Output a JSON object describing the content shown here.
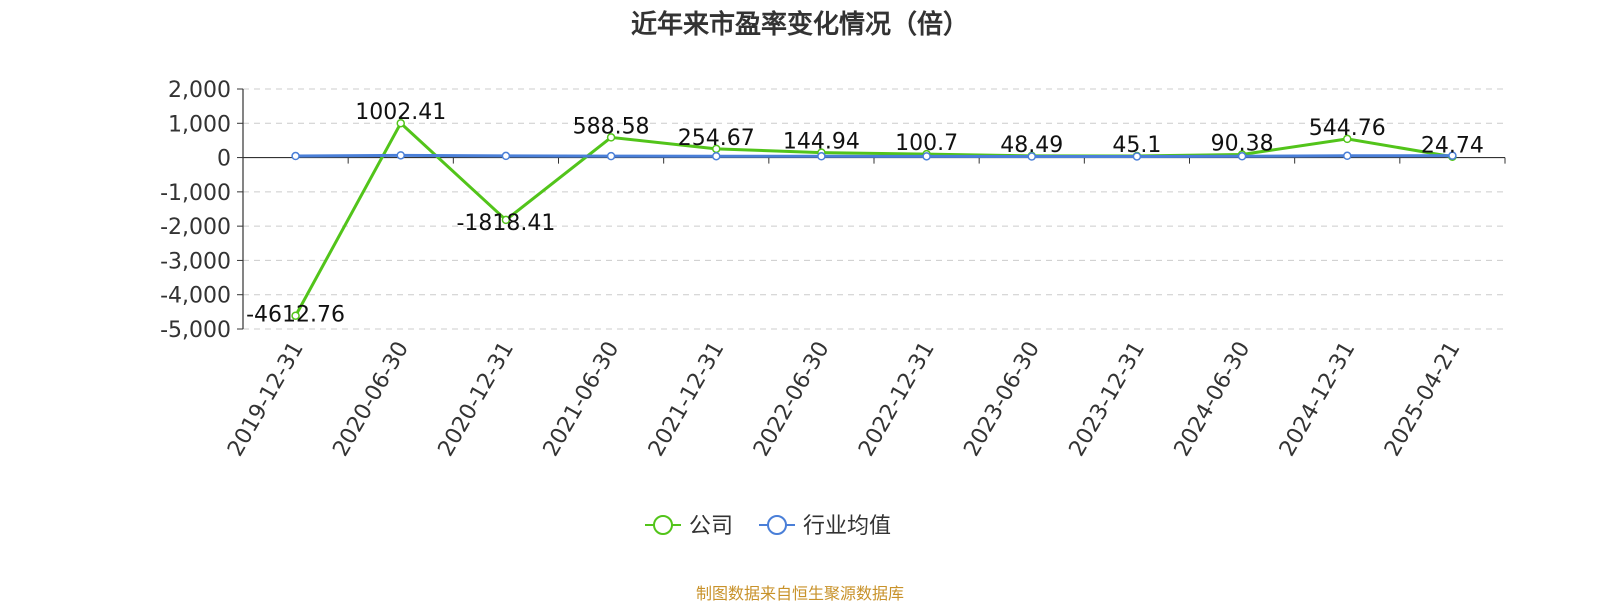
{
  "title": "近年来市盈率变化情况（倍）",
  "source_note": "制图数据来自恒生聚源数据库",
  "chart_data": {
    "type": "line",
    "title": "近年来市盈率变化情况（倍）",
    "categories": [
      "2019-12-31",
      "2020-06-30",
      "2020-12-31",
      "2021-06-30",
      "2021-12-31",
      "2022-06-30",
      "2022-12-31",
      "2023-06-30",
      "2023-12-31",
      "2024-06-30",
      "2024-12-31",
      "2025-04-21"
    ],
    "series": [
      {
        "name": "公司",
        "color": "#52c41a",
        "values": [
          -4612.76,
          1002.41,
          -1818.41,
          588.58,
          254.67,
          144.94,
          100.7,
          48.49,
          45.1,
          90.38,
          544.76,
          24.74
        ],
        "labels": [
          "-4612.76",
          "1002.41",
          "-1818.41",
          "588.58",
          "254.67",
          "144.94",
          "100.7",
          "48.49",
          "45.1",
          "90.38",
          "544.76",
          "24.74"
        ]
      },
      {
        "name": "行业均值",
        "color": "#4a7fd8",
        "values": [
          45,
          65,
          48,
          42,
          40,
          38,
          36,
          30,
          32,
          38,
          52,
          55
        ]
      }
    ],
    "y_ticks": [
      "2,000",
      "1,000",
      "0",
      "-1,000",
      "-2,000",
      "-3,000",
      "-4,000",
      "-5,000"
    ],
    "ylim": [
      -5000,
      2000
    ],
    "grid": true,
    "legend_position": "bottom-center"
  }
}
